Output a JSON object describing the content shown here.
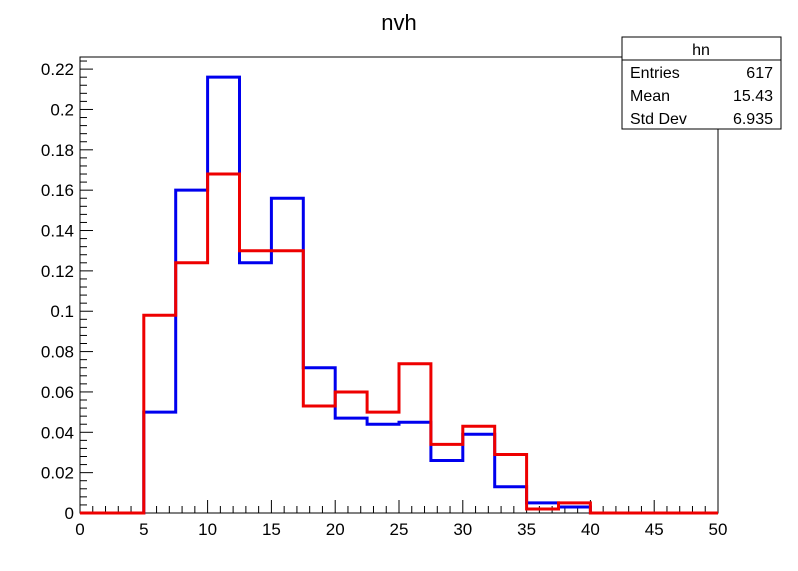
{
  "chart_data": {
    "type": "histogram",
    "title": "nvh",
    "xlabel": "",
    "ylabel": "",
    "xlim": [
      0,
      50
    ],
    "ylim": [
      0,
      0.226
    ],
    "x_ticks": [
      "0",
      "5",
      "10",
      "15",
      "20",
      "25",
      "30",
      "35",
      "40",
      "45",
      "50"
    ],
    "y_ticks": [
      "0",
      "0.02",
      "0.04",
      "0.06",
      "0.08",
      "0.1",
      "0.12",
      "0.14",
      "0.16",
      "0.18",
      "0.2",
      "0.22"
    ],
    "bin_edges": [
      0,
      2.5,
      5,
      7.5,
      10,
      12.5,
      15,
      17.5,
      20,
      22.5,
      25,
      27.5,
      30,
      32.5,
      35,
      37.5,
      40,
      42.5,
      45,
      47.5,
      50
    ],
    "series": [
      {
        "color": "#0000ee",
        "values": [
          0,
          0,
          0.05,
          0.16,
          0.216,
          0.124,
          0.156,
          0.072,
          0.047,
          0.044,
          0.045,
          0.026,
          0.039,
          0.013,
          0.005,
          0.003,
          0,
          0,
          0,
          0
        ]
      },
      {
        "color": "#ee0000",
        "values": [
          0,
          0,
          0.098,
          0.124,
          0.168,
          0.13,
          0.13,
          0.053,
          0.06,
          0.05,
          0.074,
          0.034,
          0.043,
          0.029,
          0.002,
          0.005,
          0,
          0,
          0,
          0
        ]
      }
    ],
    "stats_box": {
      "name": "hn",
      "rows": [
        {
          "label": "Entries",
          "value": "617"
        },
        {
          "label": "Mean",
          "value": "15.43"
        },
        {
          "label": "Std Dev",
          "value": "6.935"
        }
      ]
    }
  }
}
